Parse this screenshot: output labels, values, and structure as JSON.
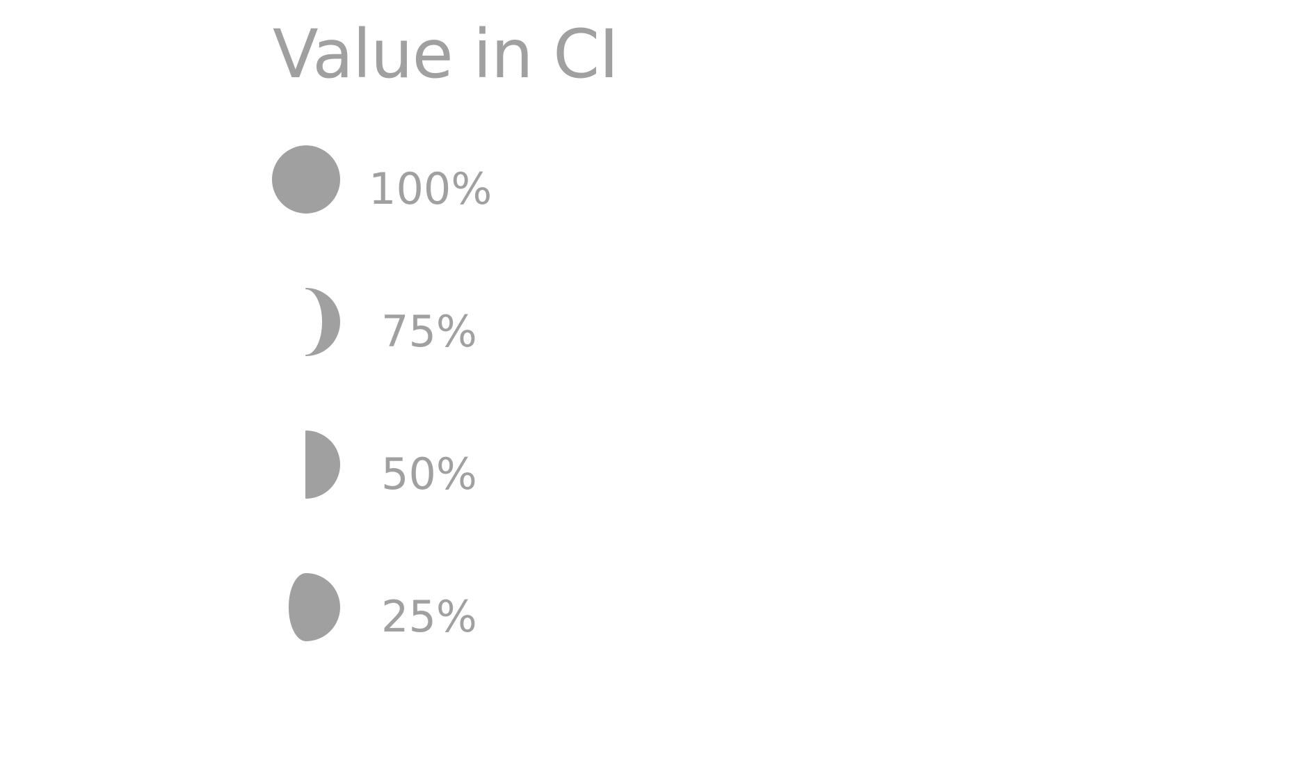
{
  "chart_data": {
    "type": "legend",
    "title": "Value in CI",
    "fill_color": "#a0a0a0",
    "shape": "partial-circle",
    "entries": [
      {
        "label": "100%",
        "value": 1.0
      },
      {
        "label": "75%",
        "value": 0.75
      },
      {
        "label": "50%",
        "value": 0.5
      },
      {
        "label": "25%",
        "value": 0.25
      }
    ]
  }
}
